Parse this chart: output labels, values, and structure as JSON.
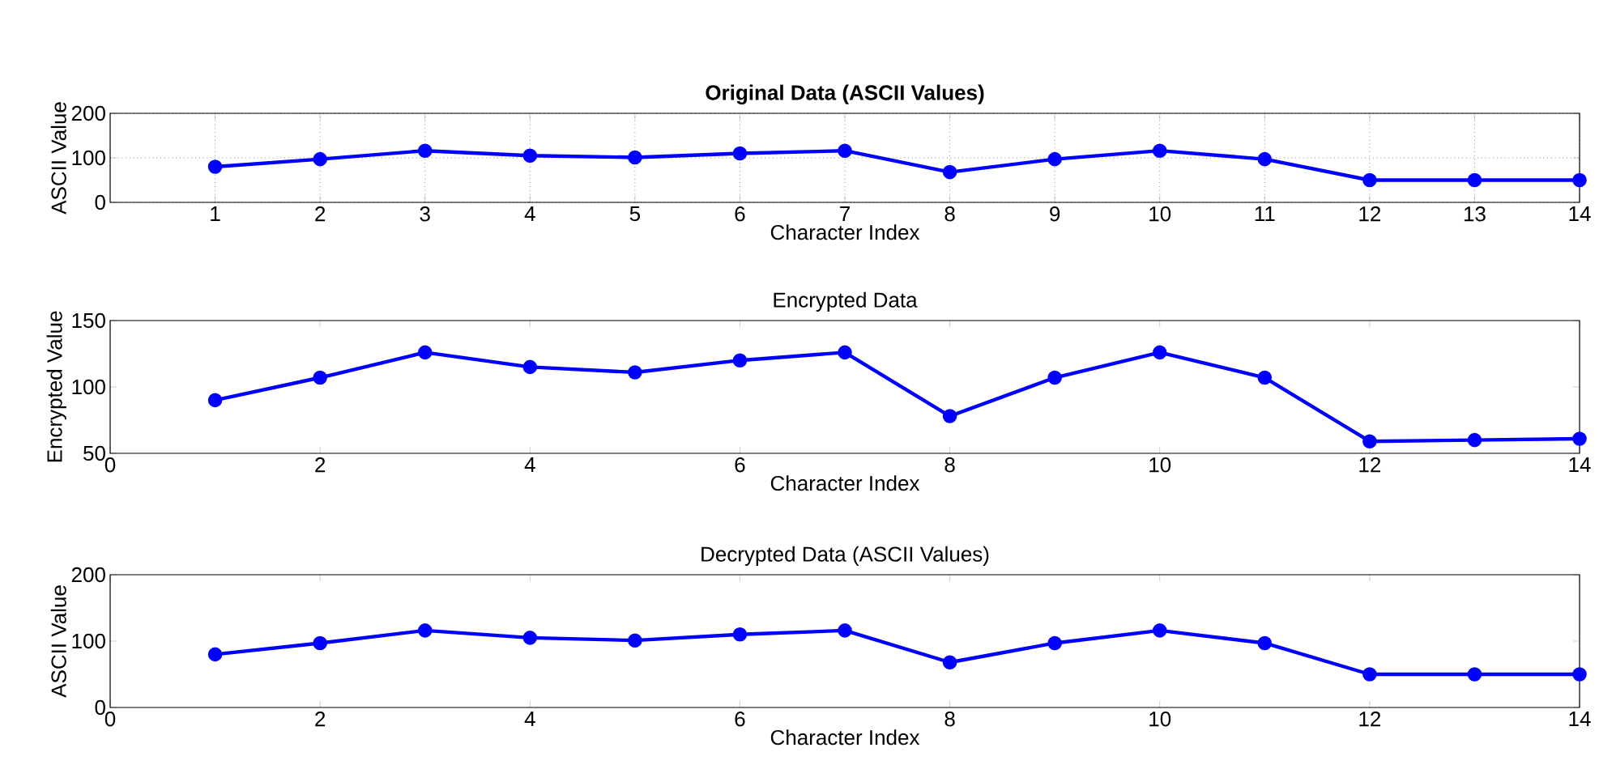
{
  "chart_data": [
    {
      "type": "line",
      "title": "Original Data (ASCII Values)",
      "xlabel": "Character Index",
      "ylabel": "ASCII Value",
      "x": [
        1,
        2,
        3,
        4,
        5,
        6,
        7,
        8,
        9,
        10,
        11,
        12,
        13,
        14
      ],
      "xlim": [
        0,
        14
      ],
      "xticks": [
        1,
        2,
        3,
        4,
        5,
        6,
        7,
        8,
        9,
        10,
        11,
        12,
        13,
        14
      ],
      "ylim": [
        0,
        200
      ],
      "yticks": [
        0,
        100,
        200
      ],
      "grid": true,
      "marker": "circle",
      "line_style": "solid",
      "series": [
        {
          "color": "#0000ff",
          "values": [
            80,
            97,
            116,
            105,
            101,
            110,
            116,
            68,
            97,
            116,
            97,
            50,
            50,
            50
          ]
        }
      ]
    },
    {
      "type": "line",
      "title": "Encrypted Data",
      "xlabel": "Character Index",
      "ylabel": "Encrypted Value",
      "x": [
        1,
        2,
        3,
        4,
        5,
        6,
        7,
        8,
        9,
        10,
        11,
        12,
        13,
        14
      ],
      "xlim": [
        0,
        14
      ],
      "xticks": [
        0,
        2,
        4,
        6,
        8,
        10,
        12,
        14
      ],
      "ylim": [
        50,
        150
      ],
      "yticks": [
        50,
        100,
        150
      ],
      "marker": "circle",
      "line_style": "solid",
      "series": [
        {
          "color": "#0000ff",
          "values": [
            90,
            107,
            126,
            115,
            111,
            120,
            126,
            78,
            107,
            126,
            107,
            59,
            60,
            61
          ]
        }
      ]
    },
    {
      "type": "line",
      "title": "Decrypted Data (ASCII Values)",
      "xlabel": "Character Index",
      "ylabel": "ASCII Value",
      "x": [
        1,
        2,
        3,
        4,
        5,
        6,
        7,
        8,
        9,
        10,
        11,
        12,
        13,
        14
      ],
      "xlim": [
        0,
        14
      ],
      "xticks": [
        0,
        2,
        4,
        6,
        8,
        10,
        12,
        14
      ],
      "ylim": [
        0,
        200
      ],
      "yticks": [
        0,
        100,
        200
      ],
      "marker": "circle",
      "line_style": "solid",
      "series": [
        {
          "color": "#0000ff",
          "values": [
            80,
            97,
            116,
            105,
            101,
            110,
            116,
            68,
            97,
            116,
            97,
            50,
            50,
            50
          ]
        }
      ]
    }
  ]
}
